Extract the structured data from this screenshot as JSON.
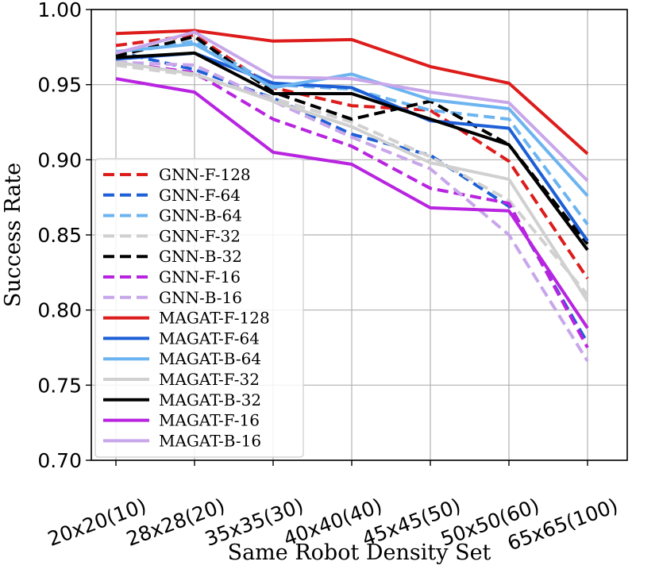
{
  "chart_data": {
    "type": "line",
    "title": "",
    "xlabel": "Same Robot Density Set",
    "ylabel": "Success Rate",
    "categories": [
      "20x20(10)",
      "28x28(20)",
      "35x35(30)",
      "40x40(40)",
      "45x45(50)",
      "50x50(60)",
      "65x65(100)"
    ],
    "ylim": [
      0.7,
      1.0
    ],
    "yticks": [
      "0.70",
      "0.75",
      "0.80",
      "0.85",
      "0.90",
      "0.95",
      "1.00"
    ],
    "grid": true,
    "legend_position": "lower-left",
    "series": [
      {
        "name": "GNN-F-128",
        "style": "dashed",
        "color": "#dd1c1c",
        "values": [
          0.976,
          0.983,
          0.948,
          0.936,
          0.933,
          0.899,
          0.821
        ]
      },
      {
        "name": "GNN-F-64",
        "style": "dashed",
        "color": "#1c5fd6",
        "values": [
          0.972,
          0.96,
          0.941,
          0.917,
          0.903,
          0.869,
          0.778
        ]
      },
      {
        "name": "GNN-B-64",
        "style": "dashed",
        "color": "#6cb4f0",
        "values": [
          0.97,
          0.979,
          0.95,
          0.947,
          0.933,
          0.927,
          0.857
        ]
      },
      {
        "name": "GNN-F-32",
        "style": "dashed",
        "color": "#d0d0d0",
        "values": [
          0.963,
          0.956,
          0.941,
          0.925,
          0.902,
          0.873,
          0.81
        ]
      },
      {
        "name": "GNN-B-32",
        "style": "dashed",
        "color": "#000000",
        "values": [
          0.969,
          0.982,
          0.945,
          0.927,
          0.939,
          0.91,
          0.844
        ]
      },
      {
        "name": "GNN-F-16",
        "style": "dashed",
        "color": "#b824e0",
        "values": [
          0.965,
          0.958,
          0.927,
          0.909,
          0.881,
          0.871,
          0.775
        ]
      },
      {
        "name": "GNN-B-16",
        "style": "dashed",
        "color": "#c8a6ea",
        "values": [
          0.965,
          0.963,
          0.939,
          0.915,
          0.894,
          0.85,
          0.766
        ]
      },
      {
        "name": "MAGAT-F-128",
        "style": "solid",
        "color": "#dd1c1c",
        "values": [
          0.984,
          0.986,
          0.979,
          0.98,
          0.962,
          0.951,
          0.904
        ]
      },
      {
        "name": "MAGAT-F-64",
        "style": "solid",
        "color": "#1c5fd6",
        "values": [
          0.967,
          0.971,
          0.951,
          0.948,
          0.926,
          0.921,
          0.846
        ]
      },
      {
        "name": "MAGAT-B-64",
        "style": "solid",
        "color": "#6cb4f0",
        "values": [
          0.972,
          0.977,
          0.948,
          0.957,
          0.94,
          0.934,
          0.876
        ]
      },
      {
        "name": "MAGAT-F-32",
        "style": "solid",
        "color": "#d0d0d0",
        "values": [
          0.965,
          0.957,
          0.939,
          0.922,
          0.898,
          0.887,
          0.806
        ]
      },
      {
        "name": "MAGAT-B-32",
        "style": "solid",
        "color": "#000000",
        "values": [
          0.968,
          0.971,
          0.944,
          0.944,
          0.927,
          0.91,
          0.84
        ]
      },
      {
        "name": "MAGAT-F-16",
        "style": "solid",
        "color": "#b824e0",
        "values": [
          0.954,
          0.945,
          0.905,
          0.897,
          0.868,
          0.866,
          0.788
        ]
      },
      {
        "name": "MAGAT-B-16",
        "style": "solid",
        "color": "#c8a6ea",
        "values": [
          0.971,
          0.985,
          0.955,
          0.954,
          0.945,
          0.938,
          0.886
        ]
      }
    ]
  }
}
